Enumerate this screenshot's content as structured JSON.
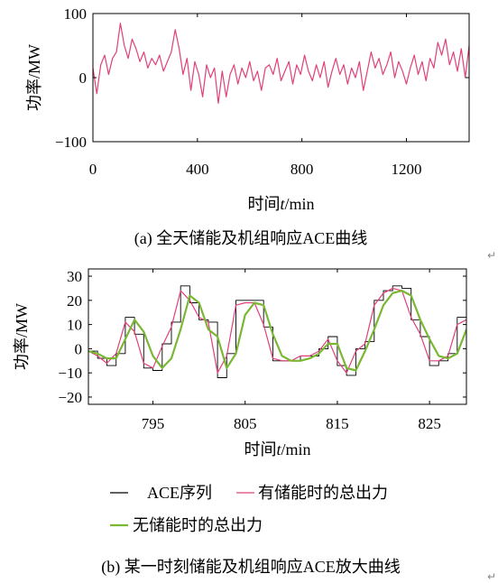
{
  "chart_data": [
    {
      "type": "line",
      "caption": "(a) 全天储能及机组响应ACE曲线",
      "xlabel_prefix": "时间",
      "xlabel_var": "t",
      "xlabel_unit": "/min",
      "ylabel": "功率/MW",
      "xlim": [
        0,
        1440
      ],
      "ylim": [
        -100,
        100
      ],
      "xticks": [
        "0",
        "400",
        "800",
        "1200"
      ],
      "xtick_values": [
        0,
        400,
        800,
        1200
      ],
      "yticks": [
        "100",
        "0",
        "−100"
      ],
      "ytick_values": [
        100,
        0,
        -100
      ],
      "grid": false,
      "series": [
        {
          "color": "#e0407a",
          "x": [
            0,
            15,
            30,
            45,
            60,
            75,
            90,
            105,
            120,
            135,
            150,
            165,
            180,
            195,
            210,
            225,
            240,
            255,
            270,
            285,
            300,
            315,
            330,
            345,
            360,
            375,
            390,
            405,
            420,
            435,
            450,
            465,
            480,
            495,
            510,
            525,
            540,
            555,
            570,
            585,
            600,
            615,
            630,
            645,
            660,
            675,
            690,
            705,
            720,
            735,
            750,
            765,
            780,
            795,
            810,
            825,
            840,
            855,
            870,
            885,
            900,
            915,
            930,
            945,
            960,
            975,
            990,
            1005,
            1020,
            1035,
            1050,
            1065,
            1080,
            1095,
            1110,
            1125,
            1140,
            1155,
            1170,
            1185,
            1200,
            1215,
            1230,
            1245,
            1260,
            1275,
            1290,
            1305,
            1320,
            1335,
            1350,
            1365,
            1380,
            1395,
            1410,
            1425,
            1440
          ],
          "values": [
            15,
            -25,
            20,
            35,
            5,
            30,
            40,
            85,
            50,
            30,
            60,
            45,
            25,
            40,
            15,
            30,
            20,
            35,
            10,
            25,
            40,
            75,
            45,
            5,
            30,
            -20,
            25,
            5,
            -30,
            20,
            0,
            15,
            -40,
            10,
            -30,
            5,
            20,
            -10,
            15,
            0,
            25,
            -5,
            10,
            -20,
            15,
            20,
            5,
            30,
            -5,
            10,
            25,
            -10,
            20,
            5,
            35,
            10,
            -5,
            20,
            0,
            25,
            -15,
            10,
            30,
            5,
            20,
            -10,
            15,
            0,
            25,
            -20,
            10,
            40,
            15,
            30,
            5,
            20,
            40,
            0,
            25,
            10,
            -10,
            15,
            35,
            5,
            25,
            -5,
            30,
            15,
            55,
            35,
            60,
            20,
            40,
            10,
            45,
            0,
            50
          ]
        }
      ]
    },
    {
      "type": "line",
      "caption": "(b) 某一时刻储能及机组响应ACE放大曲线",
      "xlabel_prefix": "时间",
      "xlabel_var": "t",
      "xlabel_unit": "/min",
      "ylabel": "功率/MW",
      "xlim": [
        788,
        829
      ],
      "ylim": [
        -23,
        33
      ],
      "xticks": [
        "795",
        "805",
        "815",
        "825"
      ],
      "xtick_values": [
        795,
        805,
        815,
        825
      ],
      "yticks": [
        "30",
        "20",
        "10",
        "0",
        "−10",
        "−20"
      ],
      "ytick_values": [
        30,
        20,
        10,
        0,
        -10,
        -20
      ],
      "grid": false,
      "legend": [
        {
          "label": "ACE序列",
          "color": "#000000"
        },
        {
          "label": "有储能时的总出力",
          "color": "#e0407a"
        },
        {
          "label": "无储能时的总出力",
          "color": "#7ab833"
        }
      ],
      "series": [
        {
          "name": "ACE序列",
          "color": "#000000",
          "step": true,
          "x": [
            788,
            789,
            790,
            791,
            792,
            793,
            794,
            795,
            796,
            797,
            798,
            799,
            800,
            801,
            802,
            803,
            804,
            805,
            806,
            807,
            808,
            809,
            810,
            811,
            812,
            813,
            814,
            815,
            816,
            817,
            818,
            819,
            820,
            821,
            822,
            823,
            824,
            825,
            826,
            827,
            828,
            829
          ],
          "values": [
            -1,
            -4,
            -7,
            -2,
            13,
            6,
            -8,
            -9,
            2,
            11,
            26,
            19,
            12,
            11,
            -12,
            -2,
            20,
            20,
            20,
            9,
            -5,
            -5,
            -5,
            -3,
            -3,
            0,
            5,
            -7,
            -11,
            0,
            3,
            20,
            24,
            26,
            25,
            12,
            5,
            -7,
            -5,
            -2,
            13,
            13
          ]
        },
        {
          "name": "有储能时的总出力",
          "color": "#e0407a",
          "x": [
            788,
            789,
            790,
            791,
            792,
            793,
            794,
            795,
            796,
            797,
            798,
            799,
            800,
            801,
            802,
            803,
            804,
            805,
            806,
            807,
            808,
            809,
            810,
            811,
            812,
            813,
            814,
            815,
            816,
            817,
            818,
            819,
            820,
            821,
            822,
            823,
            824,
            825,
            826,
            827,
            828,
            829
          ],
          "values": [
            -1,
            -3,
            -6,
            -2,
            11,
            7,
            -6,
            -8,
            1,
            9,
            24,
            20,
            13,
            11,
            -10,
            -3,
            18,
            19,
            19,
            10,
            -4,
            -5,
            -5,
            -3,
            -3,
            -1,
            4,
            -5,
            -10,
            -1,
            2,
            18,
            23,
            25,
            24,
            13,
            6,
            -5,
            -5,
            -3,
            10,
            12
          ]
        },
        {
          "name": "无储能时的总出力",
          "color": "#7ab833",
          "x": [
            788,
            789,
            790,
            791,
            792,
            793,
            794,
            795,
            796,
            797,
            798,
            799,
            800,
            801,
            802,
            803,
            804,
            805,
            806,
            807,
            808,
            809,
            810,
            811,
            812,
            813,
            814,
            815,
            816,
            817,
            818,
            819,
            820,
            821,
            822,
            823,
            824,
            825,
            826,
            827,
            828,
            829
          ],
          "values": [
            -1,
            -2,
            -4,
            -4,
            4,
            12,
            7,
            -3,
            -8,
            -4,
            8,
            22,
            19,
            8,
            5,
            -8,
            -2,
            14,
            19,
            18,
            6,
            -3,
            -5,
            -5,
            -4,
            -2,
            2,
            2,
            -8,
            -9,
            -1,
            8,
            18,
            23,
            24,
            22,
            12,
            4,
            -3,
            -4,
            -2,
            8
          ]
        }
      ]
    }
  ]
}
